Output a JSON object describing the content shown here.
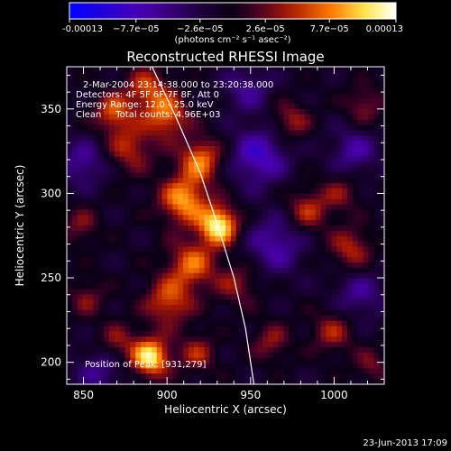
{
  "chart_data": {
    "type": "heatmap",
    "title": "Reconstructed RHESSI Image",
    "xlabel": "Heliocentric X (arcsec)",
    "ylabel": "Heliocentric Y (arcsec)",
    "xlim": [
      840,
      1030
    ],
    "ylim": [
      187,
      375
    ],
    "x_ticks": [
      850,
      900,
      950,
      1000
    ],
    "y_ticks": [
      200,
      250,
      300,
      350
    ],
    "colorbar": {
      "min": -0.00013,
      "max": 0.00013,
      "ticks": [
        -0.00013,
        -7.7e-05,
        -2.6e-05,
        2.6e-05,
        7.7e-05,
        0.00013
      ],
      "tick_labels": [
        "-0.00013",
        "−7.7e−05",
        "−2.6e−05",
        "2.6e−05",
        "7.7e−05",
        "0.00013"
      ],
      "unit_label": "(photons cm⁻² s⁻¹ asec⁻²)",
      "colors": [
        "#0000ff",
        "#4b00b0",
        "#150033",
        "#2a0040",
        "#aa1a00",
        "#ff7a00",
        "#ffff66",
        "#ffffff"
      ]
    },
    "annotations": [
      "2-Mar-2004 23:14:38.000 to 23:20:38.000",
      "Detectors: 4F 5F 6F 7F 8F, Att 0",
      "Energy Range: 12.0 - 25.0 keV",
      "Clean     Total counts: 4.96E+03"
    ],
    "peak_label": "Position of Peak: [931,279]",
    "peak": {
      "x": 931,
      "y": 279
    },
    "limb_curve": [
      {
        "x": 891,
        "y": 375
      },
      {
        "x": 905,
        "y": 346
      },
      {
        "x": 920,
        "y": 312
      },
      {
        "x": 931,
        "y": 279
      },
      {
        "x": 940,
        "y": 250
      },
      {
        "x": 947,
        "y": 220
      },
      {
        "x": 952,
        "y": 187
      }
    ],
    "sources": [
      {
        "x": 931,
        "y": 281,
        "amp": 1.0,
        "sigma": 8
      },
      {
        "x": 910,
        "y": 296,
        "amp": 0.75,
        "sigma": 10
      },
      {
        "x": 920,
        "y": 320,
        "amp": 0.65,
        "sigma": 9
      },
      {
        "x": 900,
        "y": 346,
        "amp": 0.62,
        "sigma": 9
      },
      {
        "x": 868,
        "y": 348,
        "amp": 0.55,
        "sigma": 8
      },
      {
        "x": 888,
        "y": 362,
        "amp": 0.5,
        "sigma": 9
      },
      {
        "x": 878,
        "y": 327,
        "amp": 0.45,
        "sigma": 10
      },
      {
        "x": 915,
        "y": 258,
        "amp": 0.6,
        "sigma": 10
      },
      {
        "x": 942,
        "y": 246,
        "amp": 0.35,
        "sigma": 9
      },
      {
        "x": 901,
        "y": 236,
        "amp": 0.55,
        "sigma": 10
      },
      {
        "x": 890,
        "y": 203,
        "amp": 0.95,
        "sigma": 8
      },
      {
        "x": 870,
        "y": 212,
        "amp": 0.35,
        "sigma": 8
      },
      {
        "x": 918,
        "y": 205,
        "amp": 0.4,
        "sigma": 8
      },
      {
        "x": 984,
        "y": 290,
        "amp": 0.45,
        "sigma": 9
      },
      {
        "x": 1010,
        "y": 267,
        "amp": 0.45,
        "sigma": 9
      },
      {
        "x": 1004,
        "y": 300,
        "amp": 0.3,
        "sigma": 8
      },
      {
        "x": 974,
        "y": 343,
        "amp": 0.4,
        "sigma": 8
      },
      {
        "x": 1018,
        "y": 352,
        "amp": 0.35,
        "sigma": 8
      },
      {
        "x": 999,
        "y": 218,
        "amp": 0.4,
        "sigma": 9
      },
      {
        "x": 962,
        "y": 212,
        "amp": 0.35,
        "sigma": 8
      },
      {
        "x": 1022,
        "y": 198,
        "amp": 0.3,
        "sigma": 7
      },
      {
        "x": 848,
        "y": 281,
        "amp": 0.3,
        "sigma": 8
      },
      {
        "x": 852,
        "y": 238,
        "amp": 0.3,
        "sigma": 8
      },
      {
        "x": 955,
        "y": 322,
        "amp": -0.55,
        "sigma": 12
      },
      {
        "x": 965,
        "y": 270,
        "amp": -0.45,
        "sigma": 12
      },
      {
        "x": 850,
        "y": 318,
        "amp": -0.4,
        "sigma": 10
      },
      {
        "x": 1012,
        "y": 325,
        "amp": -0.4,
        "sigma": 10
      },
      {
        "x": 1015,
        "y": 240,
        "amp": -0.35,
        "sigma": 11
      },
      {
        "x": 860,
        "y": 195,
        "amp": -0.35,
        "sigma": 10
      },
      {
        "x": 948,
        "y": 362,
        "amp": -0.35,
        "sigma": 10
      }
    ],
    "background": 0.0,
    "grid": false,
    "legend": "colorbar-top"
  },
  "footer": {
    "date_stamp": "23-Jun-2013 17:09"
  }
}
